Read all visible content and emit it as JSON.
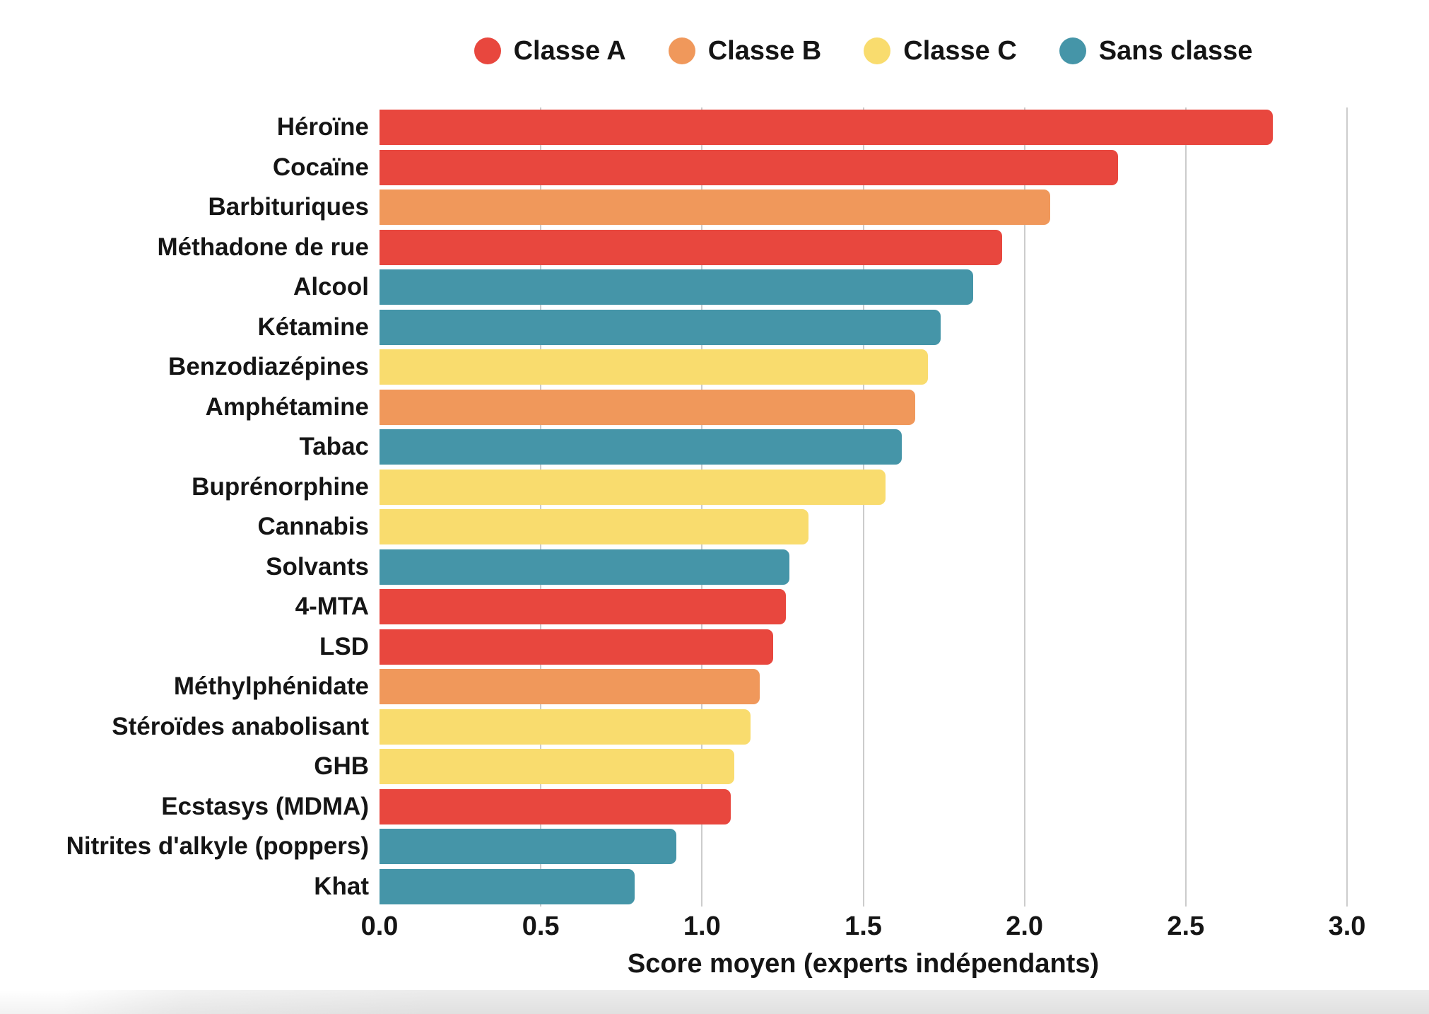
{
  "page": {
    "background": "#ffffff"
  },
  "colors": {
    "classe_a": "#E8473E",
    "classe_b": "#F0985B",
    "classe_c": "#F9DC6E",
    "sans_classe": "#4595A8",
    "gridline": "#CCCCCC",
    "text": "#151515"
  },
  "legend": {
    "items": [
      {
        "label": "Classe A",
        "class_key": "classe_a"
      },
      {
        "label": "Classe B",
        "class_key": "classe_b"
      },
      {
        "label": "Classe C",
        "class_key": "classe_c"
      },
      {
        "label": "Sans classe",
        "class_key": "sans_classe"
      }
    ]
  },
  "chart_data": {
    "type": "bar",
    "orientation": "horizontal",
    "title": "",
    "xlabel": "Score moyen (experts indépendants)",
    "ylabel": "",
    "xlim": [
      0,
      3.0
    ],
    "xticks": [
      0,
      0.5,
      1.0,
      1.5,
      2.0,
      2.5,
      3.0
    ],
    "xtick_labels": [
      "0.0",
      "0.5",
      "1.0",
      "1.5",
      "2.0",
      "2.5",
      "3.0"
    ],
    "grid": "vertical",
    "legend_position": "top-center",
    "categories": [
      "Héroïne",
      "Cocaïne",
      "Barbituriques",
      "Méthadone de rue",
      "Alcool",
      "Kétamine",
      "Benzodiazépines",
      "Amphétamine",
      "Tabac",
      "Buprénorphine",
      "Cannabis",
      "Solvants",
      "4-MTA",
      "LSD",
      "Méthylphénidate",
      "Stéroïdes anabolisant",
      "GHB",
      "Ecstasys (MDMA)",
      "Nitrites d'alkyle (poppers)",
      "Khat"
    ],
    "values": [
      2.77,
      2.29,
      2.08,
      1.93,
      1.84,
      1.74,
      1.7,
      1.66,
      1.62,
      1.57,
      1.33,
      1.27,
      1.26,
      1.22,
      1.18,
      1.15,
      1.1,
      1.09,
      0.92,
      0.79
    ],
    "classes": [
      "classe_a",
      "classe_a",
      "classe_b",
      "classe_a",
      "sans_classe",
      "sans_classe",
      "classe_c",
      "classe_b",
      "sans_classe",
      "classe_c",
      "classe_c",
      "sans_classe",
      "classe_a",
      "classe_a",
      "classe_b",
      "classe_c",
      "classe_c",
      "classe_a",
      "sans_classe",
      "sans_classe"
    ]
  }
}
